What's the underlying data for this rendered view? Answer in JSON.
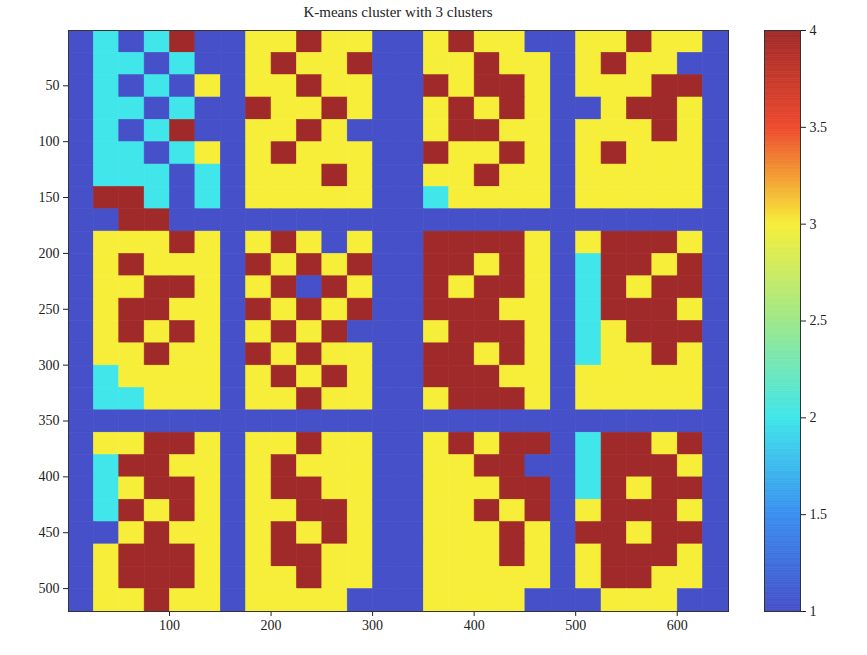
{
  "chart_data": {
    "type": "heatmap",
    "title": "K-means cluster with 3 clusters",
    "xlim": [
      0.5,
      650.5
    ],
    "ylim": [
      520.5,
      0.5
    ],
    "xticks": [
      100,
      200,
      300,
      400,
      500,
      600
    ],
    "yticks": [
      50,
      100,
      150,
      200,
      250,
      300,
      350,
      400,
      450,
      500
    ],
    "cells": [
      [
        1,
        2,
        1,
        2,
        4,
        1,
        1,
        3,
        3,
        4,
        3,
        3,
        1,
        1,
        3,
        4,
        3,
        3,
        1,
        1,
        3,
        3,
        4,
        3,
        3,
        1
      ],
      [
        1,
        2,
        2,
        1,
        2,
        1,
        1,
        3,
        4,
        3,
        3,
        4,
        1,
        1,
        3,
        3,
        4,
        3,
        3,
        1,
        3,
        4,
        3,
        3,
        1,
        1
      ],
      [
        1,
        2,
        1,
        2,
        1,
        3,
        1,
        3,
        3,
        4,
        3,
        3,
        1,
        1,
        4,
        3,
        4,
        4,
        3,
        1,
        3,
        3,
        3,
        4,
        4,
        1
      ],
      [
        1,
        2,
        2,
        1,
        2,
        1,
        1,
        4,
        3,
        3,
        4,
        3,
        1,
        1,
        3,
        4,
        3,
        4,
        3,
        1,
        1,
        3,
        4,
        4,
        3,
        1
      ],
      [
        1,
        2,
        1,
        2,
        4,
        1,
        1,
        3,
        3,
        4,
        3,
        1,
        1,
        1,
        3,
        4,
        4,
        3,
        3,
        1,
        3,
        3,
        3,
        4,
        3,
        1
      ],
      [
        1,
        2,
        2,
        1,
        2,
        3,
        1,
        3,
        4,
        3,
        3,
        3,
        1,
        1,
        4,
        3,
        3,
        4,
        3,
        1,
        3,
        4,
        3,
        3,
        3,
        1
      ],
      [
        1,
        2,
        2,
        2,
        1,
        2,
        1,
        3,
        3,
        3,
        4,
        3,
        1,
        1,
        3,
        3,
        4,
        3,
        3,
        1,
        3,
        3,
        3,
        3,
        3,
        1
      ],
      [
        1,
        4,
        4,
        2,
        1,
        2,
        1,
        3,
        3,
        3,
        3,
        3,
        1,
        1,
        2,
        3,
        3,
        3,
        3,
        1,
        3,
        3,
        3,
        3,
        3,
        1
      ],
      [
        1,
        1,
        4,
        4,
        1,
        1,
        1,
        1,
        1,
        1,
        1,
        1,
        1,
        1,
        1,
        1,
        1,
        1,
        1,
        1,
        1,
        1,
        1,
        1,
        1,
        1
      ],
      [
        1,
        3,
        3,
        3,
        4,
        3,
        1,
        3,
        4,
        3,
        1,
        3,
        1,
        1,
        4,
        4,
        4,
        4,
        3,
        1,
        3,
        4,
        4,
        4,
        3,
        1
      ],
      [
        1,
        3,
        4,
        3,
        3,
        3,
        1,
        4,
        3,
        4,
        3,
        4,
        1,
        1,
        4,
        4,
        3,
        4,
        3,
        1,
        2,
        4,
        4,
        3,
        4,
        1
      ],
      [
        1,
        3,
        3,
        4,
        4,
        3,
        1,
        3,
        4,
        1,
        4,
        3,
        1,
        1,
        4,
        3,
        4,
        4,
        3,
        1,
        2,
        4,
        3,
        4,
        4,
        1
      ],
      [
        1,
        3,
        4,
        4,
        3,
        3,
        1,
        4,
        3,
        4,
        3,
        4,
        1,
        1,
        4,
        4,
        4,
        3,
        3,
        1,
        2,
        4,
        4,
        4,
        3,
        1
      ],
      [
        1,
        3,
        4,
        3,
        4,
        3,
        1,
        3,
        4,
        3,
        4,
        1,
        1,
        1,
        3,
        4,
        4,
        4,
        3,
        1,
        2,
        3,
        4,
        4,
        4,
        1
      ],
      [
        1,
        3,
        3,
        4,
        3,
        3,
        1,
        4,
        3,
        4,
        3,
        3,
        1,
        1,
        4,
        4,
        3,
        4,
        3,
        1,
        2,
        3,
        3,
        4,
        3,
        1
      ],
      [
        1,
        2,
        3,
        3,
        3,
        3,
        1,
        3,
        4,
        3,
        4,
        3,
        1,
        1,
        4,
        4,
        4,
        3,
        3,
        1,
        3,
        3,
        3,
        3,
        3,
        1
      ],
      [
        1,
        2,
        2,
        3,
        3,
        3,
        1,
        3,
        3,
        4,
        3,
        3,
        1,
        1,
        3,
        4,
        4,
        4,
        3,
        1,
        3,
        3,
        3,
        3,
        3,
        1
      ],
      [
        1,
        1,
        1,
        1,
        1,
        1,
        1,
        1,
        1,
        1,
        1,
        1,
        1,
        1,
        1,
        1,
        1,
        1,
        1,
        1,
        1,
        1,
        1,
        1,
        1,
        1
      ],
      [
        1,
        3,
        3,
        4,
        4,
        3,
        1,
        3,
        3,
        4,
        3,
        3,
        1,
        1,
        3,
        4,
        3,
        4,
        4,
        1,
        2,
        4,
        4,
        3,
        4,
        1
      ],
      [
        1,
        2,
        4,
        4,
        3,
        3,
        1,
        3,
        4,
        3,
        3,
        3,
        1,
        1,
        3,
        3,
        4,
        4,
        1,
        1,
        2,
        4,
        4,
        4,
        3,
        1
      ],
      [
        1,
        2,
        3,
        4,
        4,
        3,
        1,
        3,
        4,
        4,
        3,
        3,
        1,
        1,
        3,
        3,
        3,
        4,
        4,
        1,
        2,
        4,
        3,
        4,
        4,
        1
      ],
      [
        1,
        2,
        4,
        3,
        4,
        3,
        1,
        3,
        3,
        4,
        4,
        3,
        1,
        1,
        3,
        3,
        4,
        3,
        4,
        1,
        3,
        4,
        4,
        4,
        3,
        1
      ],
      [
        1,
        1,
        3,
        4,
        3,
        3,
        1,
        3,
        4,
        3,
        4,
        3,
        1,
        1,
        3,
        3,
        3,
        4,
        3,
        1,
        4,
        4,
        3,
        4,
        4,
        1
      ],
      [
        1,
        3,
        4,
        4,
        4,
        3,
        1,
        3,
        4,
        4,
        3,
        3,
        1,
        1,
        3,
        3,
        3,
        4,
        3,
        1,
        3,
        4,
        4,
        4,
        3,
        1
      ],
      [
        1,
        3,
        4,
        4,
        4,
        3,
        1,
        3,
        3,
        4,
        3,
        3,
        1,
        1,
        3,
        3,
        3,
        3,
        3,
        1,
        3,
        4,
        4,
        3,
        3,
        1
      ],
      [
        1,
        3,
        3,
        4,
        3,
        3,
        1,
        3,
        3,
        3,
        3,
        1,
        1,
        1,
        3,
        3,
        3,
        3,
        1,
        1,
        1,
        3,
        3,
        3,
        1,
        1
      ]
    ],
    "colorbar": {
      "range": [
        1,
        4
      ],
      "ticks": [
        1,
        1.5,
        2,
        2.5,
        3,
        3.5,
        4
      ]
    }
  }
}
